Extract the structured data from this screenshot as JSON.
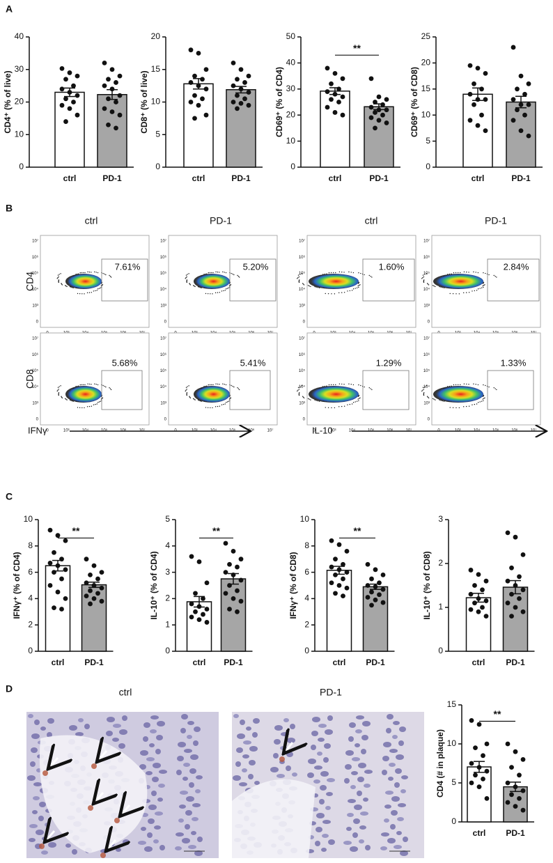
{
  "panel_labels": [
    "A",
    "B",
    "C",
    "D"
  ],
  "chart_data": [
    {
      "type": "bar",
      "ylabel": "CD4⁺ (% of live)",
      "categories": [
        "ctrl",
        "PD-1"
      ],
      "values": [
        23,
        22.3
      ],
      "errors": [
        1.3,
        1.5
      ],
      "points": [
        [
          30.3,
          29,
          28,
          27,
          25,
          24,
          23,
          22,
          21,
          20,
          19,
          18,
          16,
          14
        ],
        [
          32,
          30,
          28,
          27,
          26,
          25,
          24,
          22,
          21,
          20,
          18,
          17,
          16,
          13,
          12
        ]
      ],
      "colors": [
        "#ffffff",
        "#a6a6a6"
      ],
      "ylim": [
        0,
        40
      ],
      "yticks": [
        0,
        10,
        20,
        30,
        40
      ]
    },
    {
      "type": "bar",
      "ylabel": "CD8⁺ (% of live)",
      "categories": [
        "ctrl",
        "PD-1"
      ],
      "values": [
        12.8,
        11.9
      ],
      "errors": [
        0.8,
        0.5
      ],
      "points": [
        [
          18,
          17.5,
          15,
          14,
          13.5,
          13,
          12.5,
          12,
          11,
          10.5,
          10,
          9.5,
          8,
          7.5
        ],
        [
          16,
          15,
          14,
          13.5,
          13,
          12.5,
          12,
          11.5,
          11,
          10.5,
          10,
          9.8,
          9.5,
          9
        ]
      ],
      "colors": [
        "#ffffff",
        "#a6a6a6"
      ],
      "ylim": [
        0,
        20
      ],
      "yticks": [
        0,
        5,
        10,
        15,
        20
      ]
    },
    {
      "type": "bar",
      "ylabel": "CD69⁺ (% of CD4)",
      "categories": [
        "ctrl",
        "PD-1"
      ],
      "values": [
        29.2,
        23.2
      ],
      "errors": [
        1.3,
        1.1
      ],
      "points": [
        [
          38,
          36,
          34,
          32,
          30,
          29,
          28,
          27,
          26,
          25,
          23,
          21,
          20
        ],
        [
          34,
          27,
          26,
          25,
          24,
          23,
          22,
          22,
          21,
          20,
          19,
          18,
          17,
          15
        ]
      ],
      "colors": [
        "#ffffff",
        "#a6a6a6"
      ],
      "ylim": [
        0,
        50
      ],
      "yticks": [
        0,
        10,
        20,
        30,
        40,
        50
      ],
      "annotation": "**"
    },
    {
      "type": "bar",
      "ylabel": "CD69⁺ (% of CD8)",
      "categories": [
        "ctrl",
        "PD-1"
      ],
      "values": [
        14,
        12.5
      ],
      "errors": [
        1.2,
        1.1
      ],
      "points": [
        [
          19.5,
          19,
          18,
          16,
          15,
          14,
          13,
          13,
          12,
          10,
          9,
          8,
          7
        ],
        [
          23,
          17.5,
          16,
          15,
          14,
          13,
          12,
          12,
          11,
          10,
          9,
          7,
          6
        ]
      ],
      "colors": [
        "#ffffff",
        "#a6a6a6"
      ],
      "ylim": [
        0,
        25
      ],
      "yticks": [
        0,
        5,
        10,
        15,
        20,
        25
      ]
    },
    {
      "type": "bar",
      "ylabel": "IFNγ⁺ (% of CD4)",
      "categories": [
        "ctrl",
        "PD-1"
      ],
      "values": [
        6.5,
        5.05
      ],
      "errors": [
        0.4,
        0.2
      ],
      "points": [
        [
          9.2,
          8.8,
          8.4,
          7.5,
          7,
          6.7,
          6.5,
          6.2,
          6,
          5.5,
          5,
          4.5,
          4,
          3.3,
          3.2
        ],
        [
          7,
          6.5,
          6,
          5.8,
          5.5,
          5.2,
          5,
          4.8,
          4.6,
          4.4,
          4.2,
          4,
          3.8,
          3.6
        ]
      ],
      "colors": [
        "#ffffff",
        "#a6a6a6"
      ],
      "ylim": [
        0,
        10
      ],
      "yticks": [
        0,
        2,
        4,
        6,
        8,
        10
      ],
      "annotation": "**"
    },
    {
      "type": "bar",
      "ylabel": "IL-10⁺ (% of CD4)",
      "categories": [
        "ctrl",
        "PD-1"
      ],
      "values": [
        1.88,
        2.75
      ],
      "errors": [
        0.2,
        0.2
      ],
      "points": [
        [
          3.6,
          3.4,
          2.6,
          2.2,
          2,
          1.8,
          1.7,
          1.6,
          1.5,
          1.4,
          1.3,
          1.2,
          1.1
        ],
        [
          4.1,
          3.8,
          3.5,
          3.3,
          3.2,
          3,
          2.9,
          2.7,
          2.5,
          2.3,
          2.2,
          2,
          1.9,
          1.6,
          1.5
        ]
      ],
      "colors": [
        "#ffffff",
        "#a6a6a6"
      ],
      "ylim": [
        0,
        5
      ],
      "yticks": [
        0,
        1,
        2,
        3,
        4,
        5
      ],
      "annotation": "**"
    },
    {
      "type": "bar",
      "ylabel": "IFNγ⁺ (% of CD8)",
      "categories": [
        "ctrl",
        "PD-1"
      ],
      "values": [
        6.15,
        4.9
      ],
      "errors": [
        0.3,
        0.2
      ],
      "points": [
        [
          8.4,
          8.1,
          7.6,
          7,
          6.6,
          6.4,
          6.2,
          6,
          5.8,
          5.5,
          5.2,
          5,
          4.8,
          4.4,
          4.2
        ],
        [
          6.6,
          6.2,
          5.8,
          5.5,
          5.2,
          5,
          4.9,
          4.7,
          4.5,
          4.3,
          4.1,
          3.9,
          3.7,
          3.5
        ]
      ],
      "colors": [
        "#ffffff",
        "#a6a6a6"
      ],
      "ylim": [
        0,
        10
      ],
      "yticks": [
        0,
        2,
        4,
        6,
        8,
        10
      ],
      "annotation": "**"
    },
    {
      "type": "bar",
      "ylabel": "IL-10⁺ (% of CD8)",
      "categories": [
        "ctrl",
        "PD-1"
      ],
      "values": [
        1.22,
        1.46
      ],
      "errors": [
        0.1,
        0.15
      ],
      "points": [
        [
          1.85,
          1.75,
          1.6,
          1.5,
          1.4,
          1.3,
          1.2,
          1.15,
          1.1,
          1,
          0.95,
          0.9,
          0.8
        ],
        [
          2.7,
          2.6,
          2.2,
          1.9,
          1.7,
          1.6,
          1.5,
          1.4,
          1.3,
          1.2,
          1.1,
          1,
          0.9,
          0.8
        ]
      ],
      "colors": [
        "#ffffff",
        "#a6a6a6"
      ],
      "ylim": [
        0,
        3
      ],
      "yticks": [
        0,
        1,
        2,
        3
      ]
    },
    {
      "type": "bar",
      "ylabel": "CD4 (# in plaque)",
      "categories": [
        "ctrl",
        "PD-1"
      ],
      "values": [
        7.05,
        4.5
      ],
      "errors": [
        0.7,
        0.6
      ],
      "points": [
        [
          13,
          12.5,
          10,
          9.5,
          8.5,
          7.5,
          7,
          6.5,
          6,
          5.5,
          5,
          4.5,
          3
        ],
        [
          10,
          9,
          8,
          7,
          6,
          5,
          4.5,
          4,
          3.5,
          3,
          2.5,
          2,
          1.5
        ]
      ],
      "colors": [
        "#ffffff",
        "#a6a6a6"
      ],
      "ylim": [
        0,
        15
      ],
      "yticks": [
        0,
        5,
        10,
        15
      ],
      "annotation": "**"
    }
  ],
  "flow_cytometry": {
    "columns": [
      "ctrl",
      "PD-1",
      "ctrl",
      "PD-1"
    ],
    "rows": [
      "CD4",
      "CD8"
    ],
    "gates": [
      [
        "7.61%",
        "5.20%",
        "1.60%",
        "2.84%"
      ],
      [
        "5.68%",
        "5.41%",
        "1.29%",
        "1.33%"
      ]
    ],
    "x_axis_labels": [
      "IFNγ",
      "IL-10"
    ],
    "axis_ticks": [
      "0",
      "10³",
      "10⁴",
      "10⁵",
      "10⁶",
      "10⁷"
    ]
  },
  "histology": {
    "columns": [
      "ctrl",
      "PD-1"
    ]
  }
}
